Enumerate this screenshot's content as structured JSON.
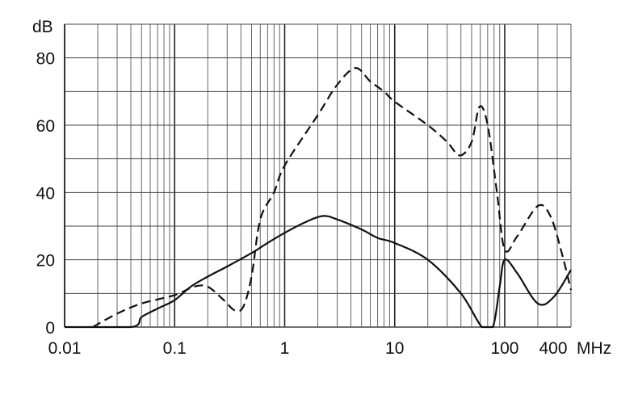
{
  "chart_data": {
    "type": "line",
    "title": "",
    "xlabel": "MHz",
    "ylabel": "dB",
    "xscale": "log",
    "xlim": [
      0.01,
      400
    ],
    "ylim": [
      0,
      90
    ],
    "grid": true,
    "x_ticks": [
      {
        "value": 0.01,
        "label": "0.01"
      },
      {
        "value": 0.1,
        "label": "0.1"
      },
      {
        "value": 1,
        "label": "1"
      },
      {
        "value": 10,
        "label": "10"
      },
      {
        "value": 100,
        "label": "100"
      },
      {
        "value": 400,
        "label": "400"
      }
    ],
    "y_ticks": [
      {
        "value": 0,
        "label": "0"
      },
      {
        "value": 20,
        "label": "20"
      },
      {
        "value": 40,
        "label": "40"
      },
      {
        "value": 60,
        "label": "60"
      },
      {
        "value": 80,
        "label": "80"
      }
    ],
    "series": [
      {
        "style": "solid",
        "color": "#111111",
        "x": [
          0.01,
          0.04,
          0.05,
          0.07,
          0.1,
          0.14,
          0.2,
          0.3,
          0.5,
          0.7,
          1,
          1.5,
          2.2,
          3,
          5,
          7,
          10,
          20,
          40,
          62,
          78,
          90,
          100,
          130,
          200,
          280,
          400
        ],
        "y": [
          0,
          0,
          3,
          5.5,
          8,
          12,
          15,
          18,
          22,
          25,
          28,
          31,
          33,
          32,
          29,
          26.5,
          25,
          20,
          10,
          0,
          0,
          12,
          20,
          16,
          7,
          9,
          17
        ]
      },
      {
        "style": "dashed",
        "color": "#111111",
        "x": [
          0.018,
          0.03,
          0.05,
          0.1,
          0.15,
          0.2,
          0.28,
          0.35,
          0.42,
          0.5,
          0.6,
          0.8,
          1,
          2,
          3,
          4.4,
          6,
          8,
          10,
          20,
          30,
          39,
          50,
          59,
          70,
          85,
          100,
          130,
          200,
          260,
          330,
          400
        ],
        "y": [
          0,
          4,
          7,
          9.5,
          12,
          12,
          8,
          5,
          6,
          15,
          32,
          40,
          48,
          63,
          72,
          77,
          73,
          70,
          67,
          60,
          55,
          51,
          55,
          65.5,
          60,
          40,
          23,
          27,
          36,
          33,
          22,
          11
        ]
      }
    ]
  }
}
